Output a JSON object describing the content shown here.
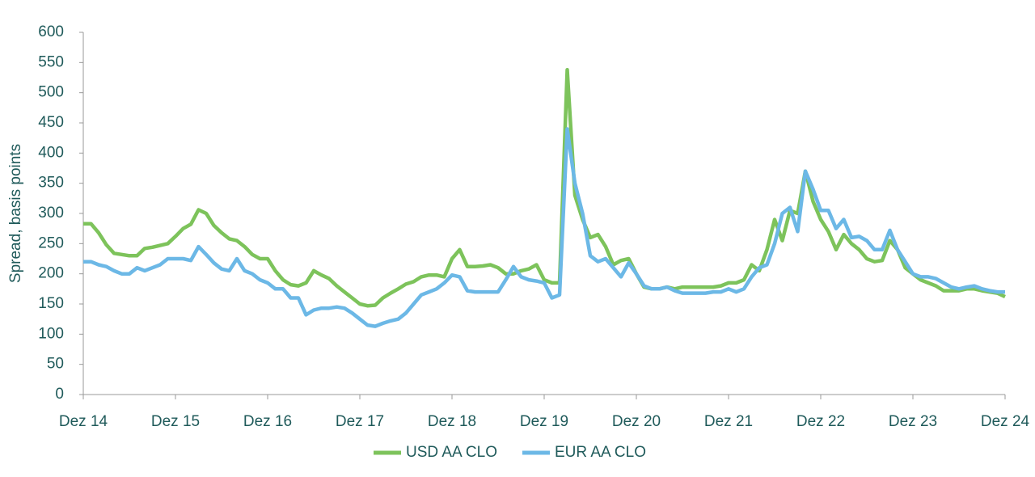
{
  "chart_data": {
    "type": "line",
    "y_label": "Spread, basis points",
    "categories": [
      "Dez 14",
      null,
      null,
      null,
      null,
      null,
      null,
      null,
      null,
      null,
      null,
      null,
      "Dez 15",
      null,
      null,
      null,
      null,
      null,
      null,
      null,
      null,
      null,
      null,
      null,
      "Dez 16",
      null,
      null,
      null,
      null,
      null,
      null,
      null,
      null,
      null,
      null,
      null,
      "Dez 17",
      null,
      null,
      null,
      null,
      null,
      null,
      null,
      null,
      null,
      null,
      null,
      "Dez 18",
      null,
      null,
      null,
      null,
      null,
      null,
      null,
      null,
      null,
      null,
      null,
      "Dez 19",
      null,
      null,
      null,
      null,
      null,
      null,
      null,
      null,
      null,
      null,
      null,
      "Dez 20",
      null,
      null,
      null,
      null,
      null,
      null,
      null,
      null,
      null,
      null,
      null,
      "Dez 21",
      null,
      null,
      null,
      null,
      null,
      null,
      null,
      null,
      null,
      null,
      null,
      "Dez 22",
      null,
      null,
      null,
      null,
      null,
      null,
      null,
      null,
      null,
      null,
      null,
      "Dez 23",
      null,
      null,
      null,
      null,
      null,
      null,
      null,
      null,
      null,
      null,
      null,
      "Dez 24"
    ],
    "series": [
      {
        "name": "USD AA CLO",
        "color": "#7dc35b",
        "values": [
          283,
          283,
          268,
          248,
          234,
          232,
          230,
          230,
          242,
          244,
          247,
          250,
          262,
          275,
          282,
          306,
          300,
          280,
          268,
          258,
          255,
          245,
          232,
          225,
          225,
          205,
          190,
          182,
          180,
          185,
          205,
          198,
          192,
          180,
          170,
          160,
          150,
          147,
          148,
          160,
          168,
          175,
          183,
          187,
          195,
          198,
          198,
          195,
          225,
          240,
          212,
          212,
          213,
          215,
          210,
          200,
          200,
          205,
          208,
          215,
          190,
          185,
          185,
          538,
          330,
          290,
          260,
          265,
          245,
          215,
          222,
          225,
          200,
          178,
          175,
          175,
          178,
          175,
          178,
          178,
          178,
          178,
          178,
          180,
          185,
          185,
          190,
          215,
          205,
          240,
          290,
          255,
          305,
          300,
          370,
          320,
          290,
          270,
          240,
          265,
          250,
          240,
          225,
          220,
          222,
          255,
          240,
          210,
          200,
          190,
          185,
          180,
          172,
          172,
          172,
          175,
          175,
          172,
          170,
          168,
          162
        ]
      },
      {
        "name": "EUR AA CLO",
        "color": "#6cb8e6",
        "values": [
          220,
          220,
          215,
          212,
          205,
          200,
          200,
          210,
          205,
          210,
          215,
          225,
          225,
          225,
          222,
          245,
          232,
          218,
          208,
          205,
          225,
          205,
          200,
          190,
          185,
          175,
          175,
          160,
          160,
          132,
          140,
          143,
          143,
          145,
          143,
          135,
          125,
          115,
          113,
          118,
          122,
          125,
          135,
          150,
          165,
          170,
          175,
          185,
          198,
          195,
          172,
          170,
          170,
          170,
          170,
          190,
          212,
          195,
          190,
          188,
          185,
          160,
          165,
          440,
          350,
          300,
          230,
          220,
          225,
          210,
          195,
          218,
          200,
          180,
          175,
          175,
          178,
          172,
          168,
          168,
          168,
          168,
          170,
          170,
          175,
          170,
          175,
          195,
          210,
          215,
          250,
          300,
          310,
          270,
          370,
          340,
          305,
          305,
          275,
          290,
          260,
          262,
          255,
          240,
          240,
          272,
          240,
          220,
          200,
          195,
          195,
          192,
          185,
          178,
          175,
          178,
          180,
          175,
          172,
          170,
          170
        ]
      }
    ],
    "ylim": [
      0,
      600
    ],
    "yticks": [
      0,
      50,
      100,
      150,
      200,
      250,
      300,
      350,
      400,
      450,
      500,
      550,
      600
    ],
    "grid": false,
    "legend": "bottom"
  }
}
